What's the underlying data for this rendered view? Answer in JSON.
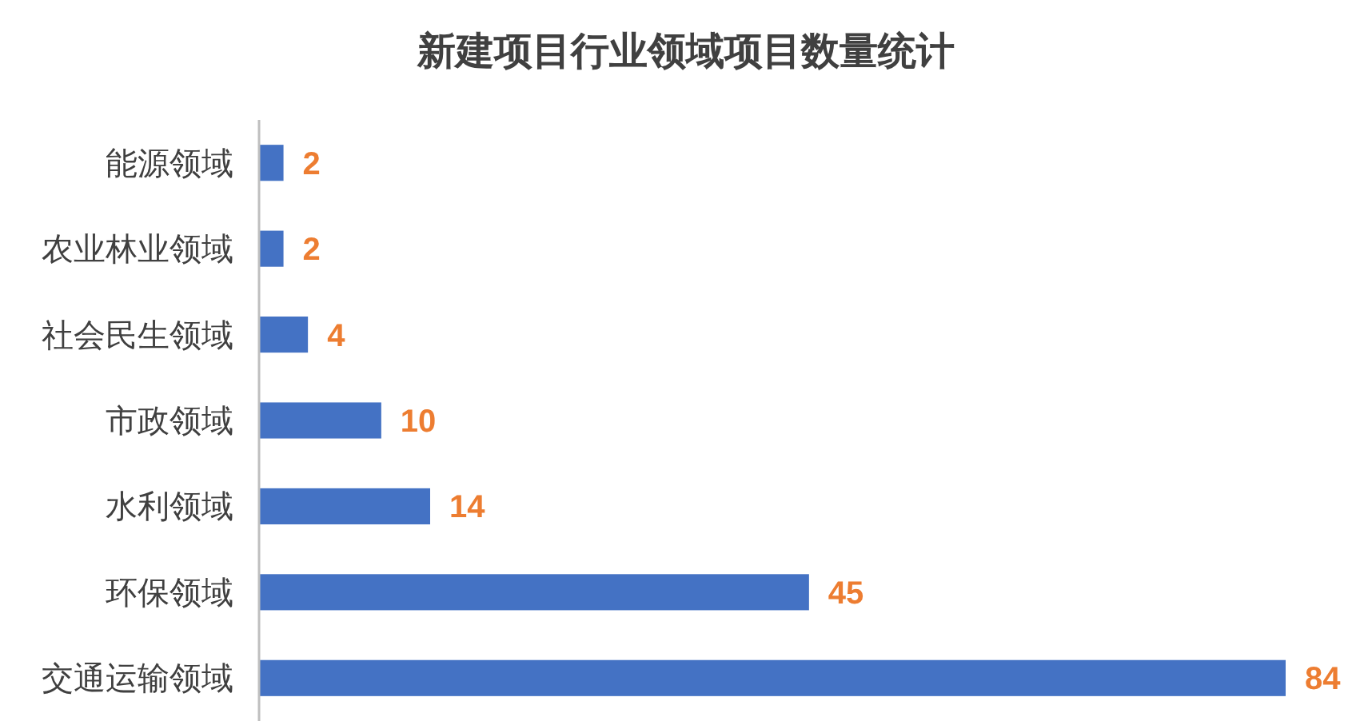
{
  "chart_data": {
    "type": "bar",
    "orientation": "horizontal",
    "title": "新建项目行业领域项目数量统计",
    "categories": [
      "能源领域",
      "农业林业领域",
      "社会民生领域",
      "市政领域",
      "水利领域",
      "环保领域",
      "交通运输领域"
    ],
    "values": [
      2,
      2,
      4,
      10,
      14,
      45,
      84
    ],
    "color": "#4472c4",
    "data_labels": true
  }
}
